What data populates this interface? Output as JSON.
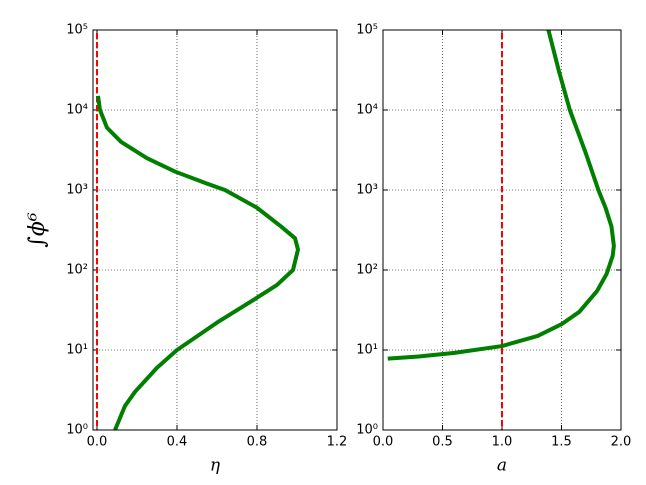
{
  "chart_data": [
    {
      "type": "line",
      "xlabel": "η",
      "ylabel": "∫ϕ⁶",
      "xlim": [
        -0.02,
        1.2
      ],
      "xticks": [
        {
          "value": 0,
          "label": "0.0"
        },
        0.4,
        0.8,
        1.2
      ],
      "ylim": [
        1,
        100000
      ],
      "log_y": true,
      "yticks": [
        {
          "value": 1,
          "label": "10⁰"
        },
        {
          "value": 10,
          "label": "10¹"
        },
        {
          "value": 100,
          "label": "10²"
        },
        {
          "value": 1000,
          "label": "10³"
        },
        {
          "value": 10000,
          "label": "10⁴"
        },
        {
          "value": 100000,
          "label": "10⁵"
        }
      ],
      "grid": true,
      "series": [
        {
          "color": "#007f00",
          "x": [
            0.005,
            0.015,
            0.05,
            0.12,
            0.25,
            0.39,
            0.55,
            0.64,
            0.8,
            0.92,
            0.99,
            1.005,
            0.98,
            0.9,
            0.8,
            0.6,
            0.4,
            0.3,
            0.19,
            0.14,
            0.09
          ],
          "values": [
            15000,
            10000,
            6000,
            4000,
            2500,
            1700,
            1200,
            1000,
            600,
            350,
            250,
            180,
            100,
            65,
            45,
            22,
            10,
            6,
            3,
            2,
            1
          ]
        }
      ],
      "vlines": [
        {
          "x": 0,
          "color": "#ff0000"
        }
      ]
    },
    {
      "type": "line",
      "xlabel": "a",
      "xlim": [
        0,
        2
      ],
      "xticks": [
        {
          "value": 0,
          "label": "0.0"
        },
        0.5,
        {
          "value": 1,
          "label": "1.0"
        },
        1.5,
        {
          "value": 2,
          "label": "2.0"
        }
      ],
      "ylim": [
        1,
        100000
      ],
      "log_y": true,
      "yticks": [
        {
          "value": 1,
          "label": "10⁰"
        },
        {
          "value": 10,
          "label": "10¹"
        },
        {
          "value": 100,
          "label": "10²"
        },
        {
          "value": 1000,
          "label": "10³"
        },
        {
          "value": 10000,
          "label": "10⁴"
        },
        {
          "value": 100000,
          "label": "10⁵"
        }
      ],
      "grid": true,
      "series": [
        {
          "color": "#007f00",
          "x": [
            0.04,
            0.3,
            0.6,
            1.0,
            1.3,
            1.5,
            1.65,
            1.8,
            1.88,
            1.93,
            1.94,
            1.92,
            1.87,
            1.81,
            1.7,
            1.57,
            1.48,
            1.39
          ],
          "values": [
            7.8,
            8.3,
            9.2,
            11.2,
            15,
            21,
            30,
            55,
            90,
            150,
            200,
            350,
            600,
            1000,
            3000,
            10000,
            30000,
            100000
          ]
        }
      ],
      "vlines": [
        {
          "x": 1,
          "color": "#ff0000"
        }
      ]
    }
  ]
}
